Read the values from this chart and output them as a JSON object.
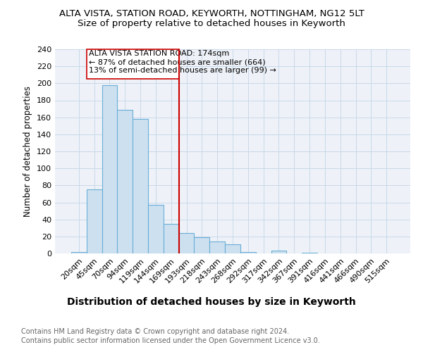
{
  "title": "ALTA VISTA, STATION ROAD, KEYWORTH, NOTTINGHAM, NG12 5LT",
  "subtitle": "Size of property relative to detached houses in Keyworth",
  "xlabel": "Distribution of detached houses by size in Keyworth",
  "ylabel": "Number of detached properties",
  "categories": [
    "20sqm",
    "45sqm",
    "70sqm",
    "94sqm",
    "119sqm",
    "144sqm",
    "169sqm",
    "193sqm",
    "218sqm",
    "243sqm",
    "268sqm",
    "292sqm",
    "317sqm",
    "342sqm",
    "367sqm",
    "391sqm",
    "416sqm",
    "441sqm",
    "466sqm",
    "490sqm",
    "515sqm"
  ],
  "values": [
    2,
    75,
    198,
    169,
    158,
    57,
    35,
    24,
    19,
    14,
    11,
    2,
    0,
    3,
    0,
    1,
    0,
    0,
    0,
    0,
    0
  ],
  "bar_color": "#cce0f0",
  "bar_edge_color": "#6baed6",
  "vline_x_index": 6,
  "vline_color": "#cc0000",
  "annotation_line1": "ALTA VISTA STATION ROAD: 174sqm",
  "annotation_line2": "← 87% of detached houses are smaller (664)",
  "annotation_line3": "13% of semi-detached houses are larger (99) →",
  "annotation_box_color": "#cc0000",
  "ylim": [
    0,
    240
  ],
  "yticks": [
    0,
    20,
    40,
    60,
    80,
    100,
    120,
    140,
    160,
    180,
    200,
    220,
    240
  ],
  "grid_color": "#c8d8e8",
  "background_color": "#eef2f8",
  "footer_line1": "Contains HM Land Registry data © Crown copyright and database right 2024.",
  "footer_line2": "Contains public sector information licensed under the Open Government Licence v3.0.",
  "title_fontsize": 9.5,
  "subtitle_fontsize": 9.5,
  "xlabel_fontsize": 10,
  "ylabel_fontsize": 8.5,
  "tick_fontsize": 8,
  "annotation_fontsize": 8,
  "footer_fontsize": 7
}
